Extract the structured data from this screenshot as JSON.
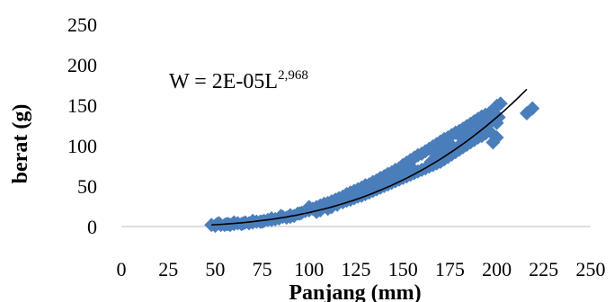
{
  "chart_data": {
    "type": "scatter",
    "title": "",
    "xlabel": "Panjang (mm)",
    "ylabel": "berat (g)",
    "xlim": [
      0,
      250
    ],
    "ylim": [
      0,
      250
    ],
    "x_ticks": [
      "0",
      "25",
      "50",
      "75",
      "100",
      "125",
      "150",
      "175",
      "200",
      "225",
      "250"
    ],
    "y_ticks": [
      "0",
      "50",
      "100",
      "150",
      "200",
      "250"
    ],
    "grid": false,
    "legend": "none",
    "marker": "diamond",
    "marker_color": "#4a7ebb",
    "trendline_color": "#000000",
    "annotation": {
      "base": "W = 2E-05L",
      "exponent": "2,968",
      "coefficient": 2e-05,
      "power": 2.968
    },
    "series": [
      {
        "values": [
          [
            48,
            2
          ],
          [
            50,
            1
          ],
          [
            51,
            3
          ],
          [
            53,
            2
          ],
          [
            55,
            2
          ],
          [
            57,
            3
          ],
          [
            58,
            2
          ],
          [
            60,
            3
          ],
          [
            62,
            4
          ],
          [
            64,
            3
          ],
          [
            66,
            5
          ],
          [
            68,
            4
          ],
          [
            70,
            5
          ],
          [
            72,
            6
          ],
          [
            74,
            6
          ],
          [
            76,
            7
          ],
          [
            78,
            8
          ],
          [
            80,
            8
          ],
          [
            82,
            9
          ],
          [
            84,
            10
          ],
          [
            86,
            12
          ],
          [
            88,
            11
          ],
          [
            90,
            14
          ],
          [
            92,
            13
          ],
          [
            94,
            16
          ],
          [
            96,
            17
          ],
          [
            98,
            19
          ],
          [
            100,
            20
          ],
          [
            102,
            22
          ],
          [
            104,
            24
          ],
          [
            106,
            26
          ],
          [
            108,
            27
          ],
          [
            110,
            29
          ],
          [
            112,
            31
          ],
          [
            114,
            33
          ],
          [
            116,
            35
          ],
          [
            118,
            37
          ],
          [
            120,
            40
          ],
          [
            122,
            42
          ],
          [
            124,
            44
          ],
          [
            126,
            46
          ],
          [
            128,
            48
          ],
          [
            130,
            51
          ],
          [
            132,
            52
          ],
          [
            134,
            55
          ],
          [
            136,
            57
          ],
          [
            138,
            60
          ],
          [
            140,
            62
          ],
          [
            142,
            65
          ],
          [
            144,
            67
          ],
          [
            146,
            70
          ],
          [
            148,
            72
          ],
          [
            150,
            76
          ],
          [
            152,
            79
          ],
          [
            154,
            82
          ],
          [
            156,
            85
          ],
          [
            158,
            88
          ],
          [
            160,
            90
          ],
          [
            162,
            93
          ],
          [
            164,
            96
          ],
          [
            166,
            99
          ],
          [
            168,
            102
          ],
          [
            170,
            105
          ],
          [
            172,
            108
          ],
          [
            174,
            110
          ],
          [
            176,
            113
          ],
          [
            178,
            116
          ],
          [
            180,
            118
          ],
          [
            182,
            121
          ],
          [
            184,
            124
          ],
          [
            186,
            127
          ],
          [
            188,
            130
          ],
          [
            190,
            133
          ],
          [
            192,
            136
          ],
          [
            194,
            138
          ],
          [
            196,
            140
          ],
          [
            198,
            144
          ],
          [
            200,
            149
          ],
          [
            202,
            152
          ],
          [
            104,
            18
          ],
          [
            106,
            20
          ],
          [
            110,
            22
          ],
          [
            112,
            24
          ],
          [
            115,
            27
          ],
          [
            118,
            30
          ],
          [
            120,
            32
          ],
          [
            122,
            33
          ],
          [
            124,
            35
          ],
          [
            126,
            37
          ],
          [
            128,
            38
          ],
          [
            130,
            40
          ],
          [
            132,
            42
          ],
          [
            134,
            44
          ],
          [
            136,
            46
          ],
          [
            138,
            48
          ],
          [
            140,
            50
          ],
          [
            142,
            52
          ],
          [
            144,
            54
          ],
          [
            146,
            56
          ],
          [
            148,
            58
          ],
          [
            150,
            60
          ],
          [
            152,
            62
          ],
          [
            154,
            64
          ],
          [
            156,
            66
          ],
          [
            158,
            68
          ],
          [
            160,
            70
          ],
          [
            162,
            72
          ],
          [
            164,
            74
          ],
          [
            166,
            76
          ],
          [
            168,
            78
          ],
          [
            170,
            80
          ],
          [
            172,
            83
          ],
          [
            174,
            86
          ],
          [
            176,
            89
          ],
          [
            178,
            92
          ],
          [
            180,
            95
          ],
          [
            182,
            98
          ],
          [
            184,
            101
          ],
          [
            186,
            104
          ],
          [
            188,
            107
          ],
          [
            190,
            110
          ],
          [
            192,
            112
          ],
          [
            194,
            115
          ],
          [
            196,
            118
          ],
          [
            198,
            104
          ],
          [
            200,
            110
          ],
          [
            190,
            118
          ],
          [
            195,
            125
          ],
          [
            185,
            112
          ],
          [
            180,
            100
          ],
          [
            175,
            95
          ],
          [
            165,
            80
          ],
          [
            155,
            72
          ],
          [
            145,
            60
          ],
          [
            135,
            50
          ],
          [
            125,
            40
          ],
          [
            115,
            33
          ],
          [
            108,
            28
          ],
          [
            100,
            24
          ],
          [
            95,
            16
          ],
          [
            90,
            12
          ],
          [
            85,
            13
          ],
          [
            80,
            10
          ],
          [
            75,
            6
          ],
          [
            70,
            7
          ],
          [
            65,
            4
          ],
          [
            60,
            5
          ],
          [
            56,
            3
          ],
          [
            52,
            4
          ],
          [
            168,
            90
          ],
          [
            172,
            95
          ],
          [
            176,
            100
          ],
          [
            182,
            108
          ],
          [
            186,
            115
          ],
          [
            192,
            122
          ],
          [
            196,
            128
          ],
          [
            198,
            132
          ],
          [
            200,
            128
          ],
          [
            201,
            135
          ],
          [
            150,
            66
          ],
          [
            152,
            70
          ],
          [
            146,
            62
          ],
          [
            140,
            55
          ],
          [
            136,
            52
          ],
          [
            130,
            45
          ],
          [
            124,
            39
          ],
          [
            118,
            34
          ],
          [
            112,
            28
          ],
          [
            128,
            44
          ],
          [
            216,
            140
          ],
          [
            219,
            146
          ]
        ]
      }
    ]
  }
}
